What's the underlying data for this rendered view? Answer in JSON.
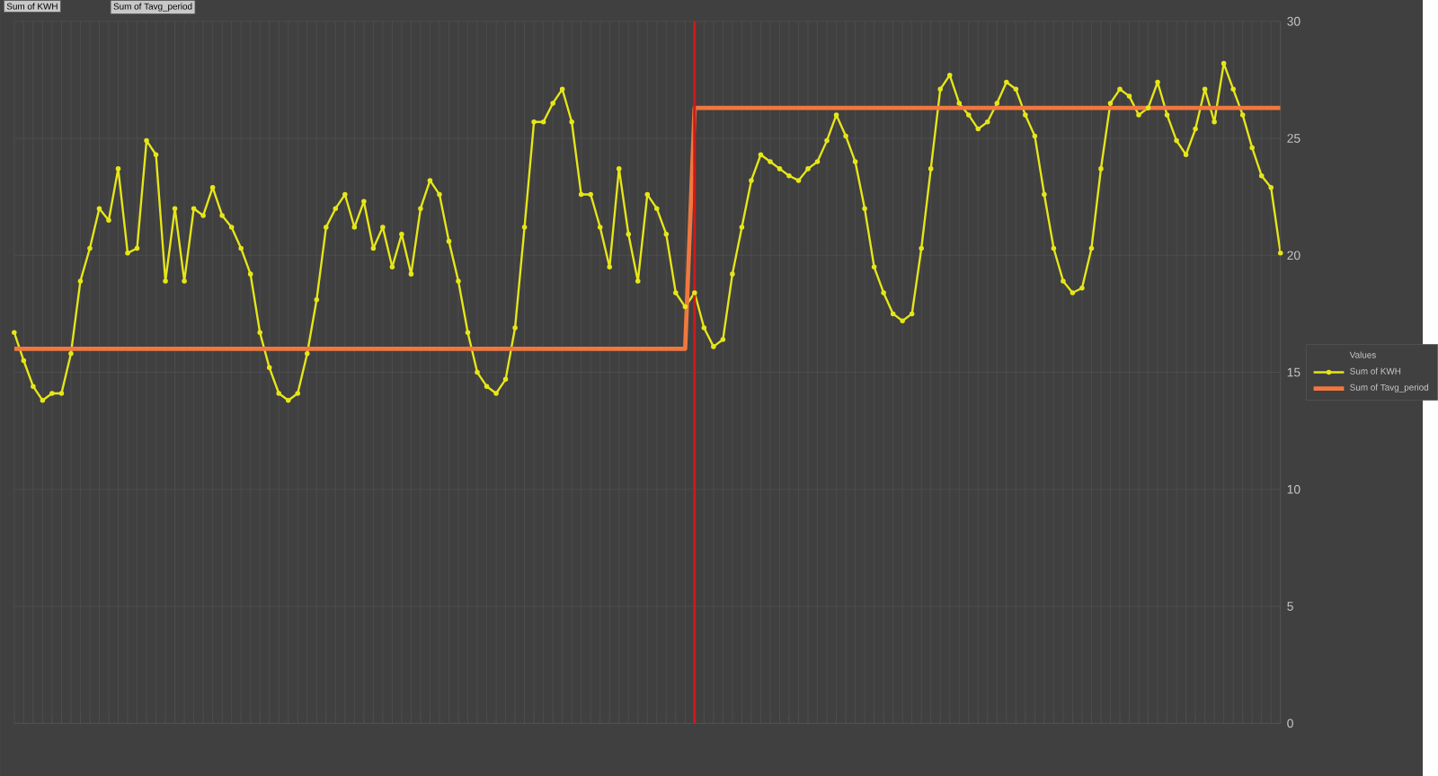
{
  "chart_data": {
    "type": "line",
    "categories": [
      null,
      null,
      null,
      null,
      null,
      null,
      null,
      null,
      null,
      null,
      null,
      null,
      null,
      null,
      null,
      null,
      null,
      null,
      null,
      null,
      null,
      null,
      null,
      null,
      null,
      null,
      null,
      null,
      null,
      null,
      null,
      null,
      null,
      null,
      null,
      null,
      null,
      null,
      null,
      null,
      null,
      null,
      null,
      null,
      null,
      null,
      null,
      null,
      null,
      null,
      null,
      null,
      null,
      null,
      null,
      null,
      null,
      null,
      null,
      null,
      null,
      null,
      null,
      null,
      null,
      null,
      null,
      null,
      null,
      null,
      null,
      null,
      null,
      null,
      null,
      null,
      null,
      null,
      null,
      null,
      null,
      null,
      null,
      null,
      null,
      null,
      null,
      null,
      null,
      null,
      null,
      null,
      null,
      null,
      null,
      null,
      null,
      null,
      null,
      null,
      null,
      null,
      null,
      null,
      null,
      null,
      null,
      null,
      null,
      null,
      null,
      null,
      null,
      null,
      null,
      null,
      null,
      null,
      null,
      null,
      null,
      null,
      null,
      null,
      null,
      null,
      null,
      null,
      null,
      null,
      null,
      null,
      null,
      null,
      null
    ],
    "series": [
      {
        "name": "Sum of KWH",
        "color": "#e6e619",
        "marker": "circle",
        "values": [
          16.7,
          15.5,
          14.4,
          13.8,
          14.1,
          14.1,
          15.8,
          18.9,
          20.3,
          22.0,
          21.5,
          23.7,
          20.1,
          20.3,
          24.9,
          24.3,
          18.9,
          22.0,
          18.9,
          22.0,
          21.7,
          22.9,
          21.7,
          21.2,
          20.3,
          19.2,
          16.7,
          15.2,
          14.1,
          13.8,
          14.1,
          15.8,
          18.1,
          21.2,
          22.0,
          22.6,
          21.2,
          22.3,
          20.3,
          21.2,
          19.5,
          20.9,
          19.2,
          22.0,
          23.2,
          22.6,
          20.6,
          18.9,
          16.7,
          15.0,
          14.4,
          14.1,
          14.7,
          16.9,
          21.2,
          25.7,
          25.7,
          26.5,
          27.1,
          25.7,
          22.6,
          22.6,
          21.2,
          19.5,
          23.7,
          20.9,
          18.9,
          22.6,
          22.0,
          20.9,
          18.4,
          17.8,
          18.4,
          16.9,
          16.1,
          16.4,
          19.2,
          21.2,
          23.2,
          24.3,
          24.0,
          23.7,
          23.4,
          23.2,
          23.7,
          24.0,
          24.9,
          26.0,
          25.1,
          24.0,
          22.0,
          19.5,
          18.4,
          17.5,
          17.2,
          17.5,
          20.3,
          23.7,
          27.1,
          27.7,
          26.5,
          26.0,
          25.4,
          25.7,
          26.5,
          27.4,
          27.1,
          26.0,
          25.1,
          22.6,
          20.3,
          18.9,
          18.4,
          18.6,
          20.3,
          23.7,
          26.5,
          27.1,
          26.8,
          26.0,
          26.3,
          27.4,
          26.0,
          24.9,
          24.3,
          25.4,
          27.1,
          25.7,
          28.2,
          27.1,
          26.0,
          24.6,
          23.4,
          22.9,
          20.1
        ]
      },
      {
        "name": "Sum of Tavg_period",
        "color": "#f07840",
        "values": [
          16.0,
          16.0,
          16.0,
          16.0,
          16.0,
          16.0,
          16.0,
          16.0,
          16.0,
          16.0,
          16.0,
          16.0,
          16.0,
          16.0,
          16.0,
          16.0,
          16.0,
          16.0,
          16.0,
          16.0,
          16.0,
          16.0,
          16.0,
          16.0,
          16.0,
          16.0,
          16.0,
          16.0,
          16.0,
          16.0,
          16.0,
          16.0,
          16.0,
          16.0,
          16.0,
          16.0,
          16.0,
          16.0,
          16.0,
          16.0,
          16.0,
          16.0,
          16.0,
          16.0,
          16.0,
          16.0,
          16.0,
          16.0,
          16.0,
          16.0,
          16.0,
          16.0,
          16.0,
          16.0,
          16.0,
          16.0,
          16.0,
          16.0,
          16.0,
          16.0,
          16.0,
          16.0,
          16.0,
          16.0,
          16.0,
          16.0,
          16.0,
          16.0,
          16.0,
          16.0,
          16.0,
          16.0,
          26.3,
          26.3,
          26.3,
          26.3,
          26.3,
          26.3,
          26.3,
          26.3,
          26.3,
          26.3,
          26.3,
          26.3,
          26.3,
          26.3,
          26.3,
          26.3,
          26.3,
          26.3,
          26.3,
          26.3,
          26.3,
          26.3,
          26.3,
          26.3,
          26.3,
          26.3,
          26.3,
          26.3,
          26.3,
          26.3,
          26.3,
          26.3,
          26.3,
          26.3,
          26.3,
          26.3,
          26.3,
          26.3,
          26.3,
          26.3,
          26.3,
          26.3,
          26.3,
          26.3,
          26.3,
          26.3,
          26.3,
          26.3,
          26.3,
          26.3,
          26.3,
          26.3,
          26.3,
          26.3,
          26.3,
          26.3,
          26.3,
          26.3,
          26.3,
          26.3,
          26.3,
          26.3,
          26.3
        ]
      }
    ],
    "ylim": [
      0,
      30
    ],
    "yticks": [
      0,
      5,
      10,
      15,
      20,
      25,
      30
    ],
    "grid": true,
    "legend": "right",
    "legend_title": "Values",
    "annotations": [
      "Sum of KWH",
      "Sum of Tavg_period"
    ]
  }
}
